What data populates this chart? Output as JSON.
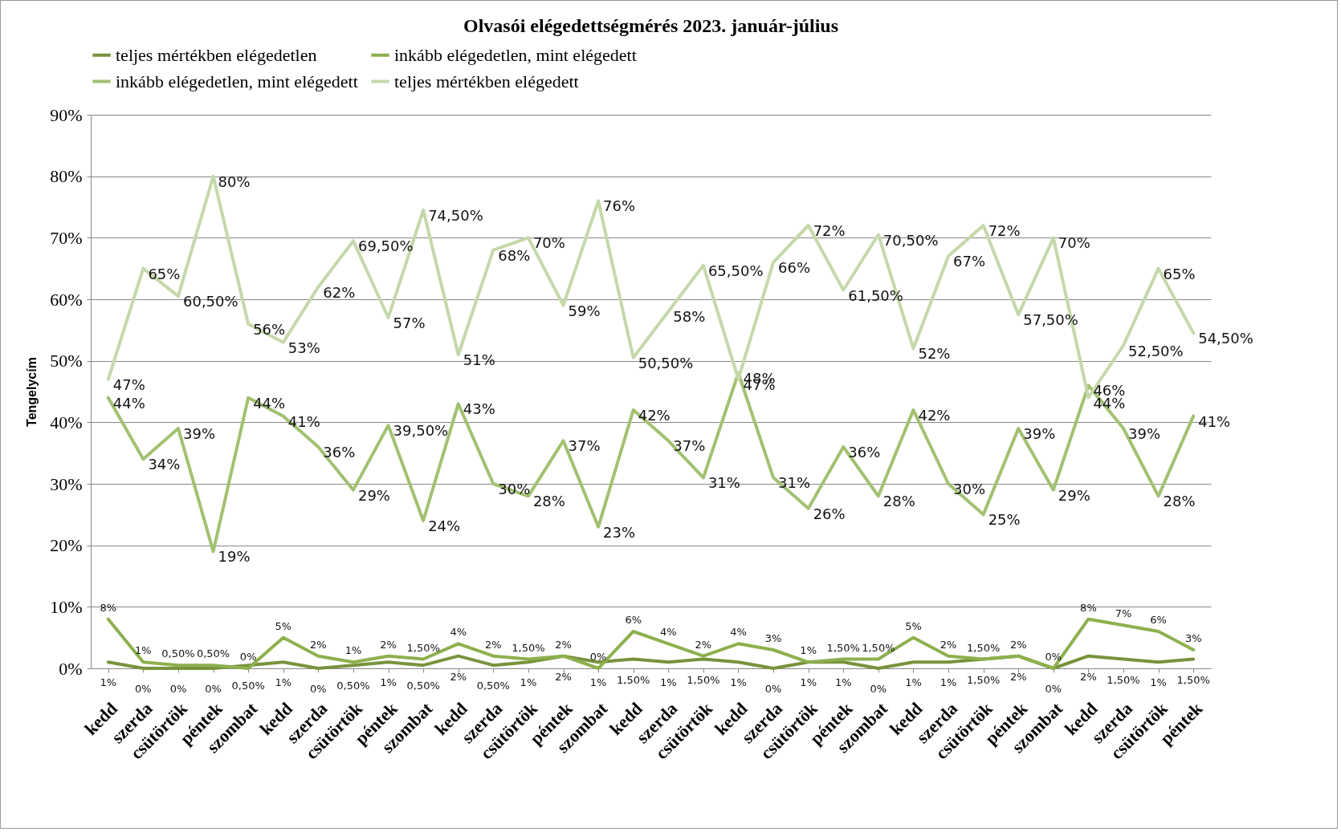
{
  "chart_data": {
    "type": "line",
    "title": "Olvasói elégedettségmérés 2023. január-július",
    "ylabel": "Tengelycím",
    "categories": [
      "kedd",
      "szerda",
      "csütörtök",
      "péntek",
      "szombat",
      "kedd",
      "szerda",
      "csütörtök",
      "péntek",
      "szombat",
      "kedd",
      "szerda",
      "csütörtök",
      "péntek",
      "szombat",
      "kedd",
      "szerda",
      "csütörtök",
      "kedd",
      "szerda",
      "csütörtök",
      "péntek",
      "szombat",
      "kedd",
      "szerda",
      "csütörtök",
      "péntek",
      "szombat",
      "kedd",
      "szerda",
      "csütörtök",
      "péntek"
    ],
    "series": [
      {
        "name": "teljes mértékben elégedetlen",
        "color": "#77933c",
        "values": [
          1,
          0,
          0,
          0,
          0.5,
          1,
          0,
          0.5,
          1,
          0.5,
          2,
          0.5,
          1,
          2,
          1,
          1.5,
          1,
          1.5,
          1,
          0,
          1,
          1,
          0,
          1,
          1,
          1.5,
          2,
          0,
          2,
          1.5,
          1,
          1.5
        ],
        "value_labels": [
          "1%",
          "0%",
          "0%",
          "0%",
          "0,50%",
          "1%",
          "0%",
          "0,50%",
          "1%",
          "0,50%",
          "2%",
          "0,50%",
          "1%",
          "2%",
          "1%",
          "1,50%",
          "1%",
          "1,50%",
          "1%",
          "0%",
          "1%",
          "1%",
          "0%",
          "1%",
          "1%",
          "1,50%",
          "2%",
          "0%",
          "2%",
          "1,50%",
          "1%",
          "1,50%"
        ]
      },
      {
        "name": "inkább elégedetlen, mint elégedett",
        "color": "#8db04e",
        "values": [
          8,
          1,
          0.5,
          0.5,
          0,
          5,
          2,
          1,
          2,
          1.5,
          4,
          2,
          1.5,
          2,
          0,
          6,
          4,
          2,
          4,
          3,
          1,
          1.5,
          1.5,
          5,
          2,
          1.5,
          2,
          0,
          8,
          7,
          6,
          3
        ],
        "value_labels": [
          "8%",
          "1%",
          "0,50%",
          "0,50%",
          "0%",
          "5%",
          "2%",
          "1%",
          "2%",
          "1,50%",
          "4%",
          "2%",
          "1,50%",
          "2%",
          "0%",
          "6%",
          "4%",
          "2%",
          "4%",
          "3%",
          "1%",
          "1,50%",
          "1,50%",
          "5%",
          "2%",
          "1,50%",
          "2%",
          "0%",
          "8%",
          "7%",
          "6%",
          "3%"
        ]
      },
      {
        "name": "inkább elégedetlen, mint elégedett",
        "color": "#a2c171",
        "values": [
          44,
          34,
          39,
          19,
          44,
          41,
          36,
          29,
          39.5,
          24,
          43,
          30,
          28,
          37,
          23,
          42,
          37,
          31,
          48,
          31,
          26,
          36,
          28,
          42,
          30,
          25,
          39,
          29,
          46,
          39,
          28,
          41
        ],
        "value_labels": [
          "44%",
          "34%",
          "39%",
          "19%",
          "44%",
          "41%",
          "36%",
          "29%",
          "39,50%",
          "24%",
          "43%",
          "30%",
          "28%",
          "37%",
          "23%",
          "42%",
          "37%",
          "31%",
          "48%",
          "31%",
          "26%",
          "36%",
          "28%",
          "42%",
          "30%",
          "25%",
          "39%",
          "29%",
          "46%",
          "39%",
          "28%",
          "41%"
        ]
      },
      {
        "name": "teljes mértékben elégedett",
        "color": "#c5d8aa",
        "values": [
          47,
          65,
          60.5,
          80,
          56,
          53,
          62,
          69.5,
          57,
          74.5,
          51,
          68,
          70,
          59,
          76,
          50.5,
          58,
          65.5,
          47,
          66,
          72,
          61.5,
          70.5,
          52,
          67,
          72,
          57.5,
          70,
          44,
          52.5,
          65,
          54.5
        ],
        "value_labels": [
          "47%",
          "65%",
          "60,50%",
          "80%",
          "56%",
          "53%",
          "62%",
          "69,50%",
          "57%",
          "74,50%",
          "51%",
          "68%",
          "70%",
          "59%",
          "76%",
          "50,50%",
          "58%",
          "65,50%",
          "47%",
          "66%",
          "72%",
          "61,50%",
          "70,50%",
          "52%",
          "67%",
          "72%",
          "57,50%",
          "70%",
          "44%",
          "52,50%",
          "65%",
          "54,50%"
        ]
      }
    ],
    "ylim": [
      0,
      90
    ],
    "yticks": [
      {
        "value": 0,
        "label": "0%"
      },
      {
        "value": 10,
        "label": "10%"
      },
      {
        "value": 20,
        "label": "20%"
      },
      {
        "value": 30,
        "label": "30%"
      },
      {
        "value": 40,
        "label": "40%"
      },
      {
        "value": 50,
        "label": "50%"
      },
      {
        "value": 60,
        "label": "60%"
      },
      {
        "value": 70,
        "label": "70%"
      },
      {
        "value": 80,
        "label": "80%"
      },
      {
        "value": 90,
        "label": "90%"
      }
    ],
    "grid": "y",
    "legend": "top",
    "marker": "none",
    "line_style": "solid"
  }
}
